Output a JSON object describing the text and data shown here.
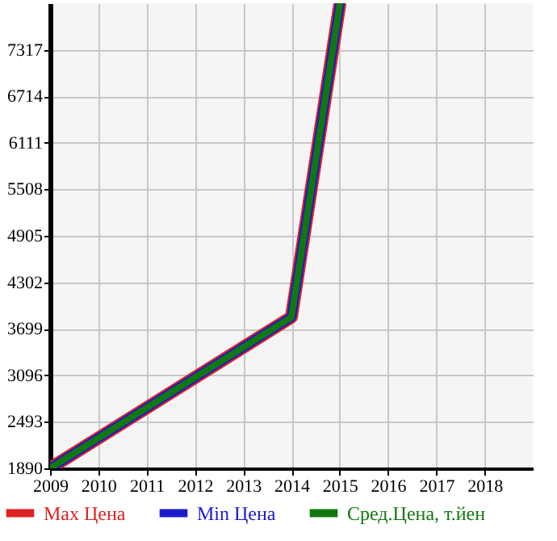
{
  "chart_data": {
    "type": "line",
    "x": [
      2009,
      2014,
      2015
    ],
    "series": [
      {
        "name": "Max Цена",
        "color": "#dd2222",
        "values": [
          1890,
          3850,
          7900
        ]
      },
      {
        "name": "Min Цена",
        "color": "#1a1acc",
        "values": [
          1890,
          3850,
          7900
        ]
      },
      {
        "name": "Сред.Цена, т.йен",
        "color": "#117711",
        "values": [
          1890,
          3850,
          7900
        ]
      }
    ],
    "xlim": [
      2009,
      2019
    ],
    "xticks": [
      2009,
      2010,
      2011,
      2012,
      2013,
      2014,
      2015,
      2016,
      2017,
      2018
    ],
    "ylim": [
      1890,
      7920
    ],
    "yticks": [
      1890,
      2493,
      3096,
      3699,
      4302,
      4905,
      5508,
      6111,
      6714,
      7317
    ],
    "grid": true,
    "legend": "bottom",
    "marker": "none",
    "line_style": "solid"
  }
}
